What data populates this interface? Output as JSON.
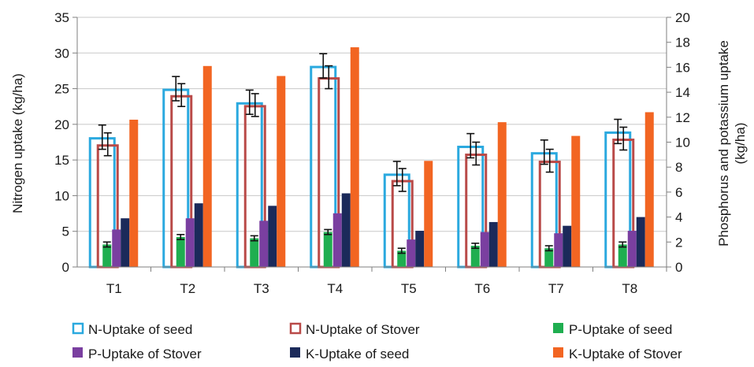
{
  "chart_data": {
    "type": "bar",
    "categories": [
      "T1",
      "T2",
      "T3",
      "T4",
      "T5",
      "T6",
      "T7",
      "T8"
    ],
    "y_left": {
      "label": "Nitrogen uptake (kg/ha)",
      "lim": [
        0,
        35
      ],
      "ticks": [
        "0",
        "5",
        "10",
        "15",
        "20",
        "25",
        "30",
        "35"
      ]
    },
    "y_right": {
      "label_lines": [
        "Phosphorus and potassium uptake",
        "(kg/ha)"
      ],
      "lim": [
        0,
        20
      ],
      "ticks": [
        "0",
        "2",
        "4",
        "6",
        "8",
        "10",
        "12",
        "14",
        "16",
        "18",
        "20"
      ]
    },
    "grid": "horizontal",
    "legend_position": "bottom",
    "series": [
      {
        "name": "N-Uptake of seed",
        "axis": "left",
        "style": "outline",
        "color": "#2aa9df",
        "values": [
          18.2,
          25.0,
          23.1,
          28.2,
          13.1,
          17.0,
          16.1,
          19.0
        ],
        "errors": [
          1.7,
          1.7,
          1.7,
          1.7,
          1.7,
          1.7,
          1.7,
          1.7
        ]
      },
      {
        "name": "N-Uptake of Stover",
        "axis": "left",
        "style": "outline",
        "color": "#b94a48",
        "values": [
          17.2,
          24.1,
          22.7,
          26.6,
          12.2,
          15.9,
          14.9,
          18.0
        ],
        "errors": [
          1.6,
          1.6,
          1.6,
          1.6,
          1.6,
          1.6,
          1.6,
          1.6
        ]
      },
      {
        "name": "P-Uptake of seed",
        "axis": "right",
        "style": "solid",
        "color": "#1fae50",
        "values": [
          1.8,
          2.4,
          2.3,
          2.8,
          1.3,
          1.7,
          1.5,
          1.8
        ],
        "errors": [
          0.2,
          0.2,
          0.2,
          0.2,
          0.2,
          0.2,
          0.2,
          0.2
        ]
      },
      {
        "name": "P-Uptake of Stover",
        "axis": "right",
        "style": "solid",
        "color": "#7a3fa0",
        "values": [
          3.0,
          3.9,
          3.7,
          4.3,
          2.2,
          2.8,
          2.7,
          2.9
        ]
      },
      {
        "name": "K-Uptake of seed",
        "axis": "right",
        "style": "solid",
        "color": "#1b2a5a",
        "values": [
          3.9,
          5.1,
          4.9,
          5.9,
          2.9,
          3.6,
          3.3,
          4.0
        ]
      },
      {
        "name": "K-Uptake of Stover",
        "axis": "right",
        "style": "solid",
        "color": "#f26522",
        "values": [
          11.8,
          16.1,
          15.3,
          17.6,
          8.5,
          11.6,
          10.5,
          12.4
        ]
      }
    ]
  }
}
